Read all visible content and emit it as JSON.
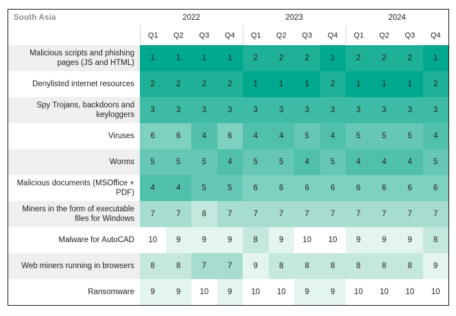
{
  "header": {
    "region_label": "South Asia",
    "years": [
      "2022",
      "2023",
      "2024"
    ],
    "quarters": [
      "Q1",
      "Q2",
      "Q3",
      "Q4"
    ]
  },
  "colors": {
    "border": "#1a1a1a",
    "text": "#1f1f1f",
    "region_label_text": "#8a8a8a",
    "label_row_alt_bg": "#efefef",
    "header_divider": "#d4d4d4",
    "rank_palette": {
      "1": "#00a88e",
      "2": "#1fb098",
      "3": "#3dbba4",
      "4": "#50c0ab",
      "5": "#66c8b4",
      "6": "#7ed0bf",
      "7": "#a6ddd0",
      "8": "#c4e8de",
      "9": "#e4f4ef",
      "10": "#ffffff"
    }
  },
  "chart_data": {
    "type": "heatmap",
    "title": "South Asia",
    "column_groups": [
      {
        "year": "2022",
        "quarters": [
          "Q1",
          "Q2",
          "Q3",
          "Q4"
        ]
      },
      {
        "year": "2023",
        "quarters": [
          "Q1",
          "Q2",
          "Q3",
          "Q4"
        ]
      },
      {
        "year": "2024",
        "quarters": [
          "Q1",
          "Q2",
          "Q3",
          "Q4"
        ]
      }
    ],
    "scale": {
      "min": 1,
      "max": 10
    },
    "rows": [
      {
        "label": "Malicious scripts and phishing pages (JS and HTML)",
        "values": [
          1,
          1,
          1,
          1,
          2,
          2,
          2,
          1,
          2,
          2,
          2,
          1
        ]
      },
      {
        "label": "Denylisted internet resources",
        "values": [
          2,
          2,
          2,
          2,
          1,
          1,
          1,
          2,
          1,
          1,
          1,
          2
        ]
      },
      {
        "label": "Spy Trojans, backdoors and keyloggers",
        "values": [
          3,
          3,
          3,
          3,
          3,
          3,
          3,
          3,
          3,
          3,
          3,
          3
        ]
      },
      {
        "label": "Viruses",
        "values": [
          6,
          6,
          4,
          6,
          4,
          4,
          5,
          4,
          5,
          5,
          5,
          4
        ]
      },
      {
        "label": "Worms",
        "values": [
          5,
          5,
          5,
          4,
          5,
          5,
          4,
          5,
          4,
          4,
          4,
          5
        ]
      },
      {
        "label": "Malicious documents (MSOffice + PDF)",
        "values": [
          4,
          4,
          5,
          5,
          6,
          6,
          6,
          6,
          6,
          6,
          6,
          6
        ]
      },
      {
        "label": "Miners in the form of executable files for Windows",
        "values": [
          7,
          7,
          8,
          7,
          7,
          7,
          7,
          7,
          7,
          7,
          7,
          7
        ]
      },
      {
        "label": "Malware for AutoCAD",
        "values": [
          10,
          9,
          9,
          9,
          8,
          9,
          10,
          10,
          9,
          9,
          9,
          8
        ]
      },
      {
        "label": "Web miners running in browsers",
        "values": [
          8,
          8,
          7,
          7,
          9,
          8,
          8,
          8,
          8,
          8,
          8,
          9
        ]
      },
      {
        "label": "Ransomware",
        "values": [
          9,
          9,
          10,
          9,
          10,
          10,
          9,
          9,
          10,
          10,
          10,
          10
        ]
      }
    ]
  }
}
